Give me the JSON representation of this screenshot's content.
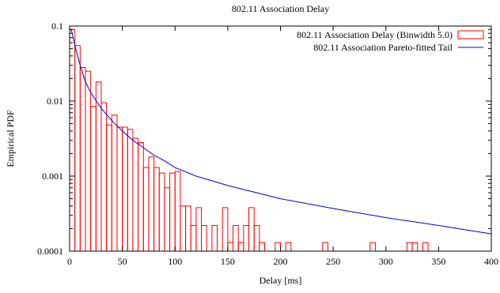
{
  "chart_data": {
    "type": "bar",
    "title": "802.11 Association Delay",
    "xlabel": "Delay [ms]",
    "ylabel": "Empirical PDF",
    "xlim": [
      0,
      400
    ],
    "ylim": [
      0.0001,
      0.1
    ],
    "yscale": "log",
    "grid": false,
    "legend_position": "top-right",
    "x_ticks": [
      0,
      50,
      100,
      150,
      200,
      250,
      300,
      350,
      400
    ],
    "x_tick_labels": [
      "0",
      "50",
      "100",
      "150",
      "200",
      "250",
      "300",
      "350",
      "400"
    ],
    "y_ticks": [
      0.0001,
      0.001,
      0.01,
      0.1
    ],
    "y_tick_labels": [
      "0.0001",
      "0.001",
      "0.01",
      "0.1"
    ],
    "series": [
      {
        "name": "802.11 Association Delay (Binwidth 5.0)",
        "kind": "histogram",
        "color": "#ff0000",
        "binwidth": 5,
        "bins": [
          [
            0,
            0.09
          ],
          [
            5,
            0.055
          ],
          [
            10,
            0.028
          ],
          [
            15,
            0.025
          ],
          [
            20,
            0.0085
          ],
          [
            25,
            0.018
          ],
          [
            30,
            0.0095
          ],
          [
            35,
            0.0048
          ],
          [
            40,
            0.0065
          ],
          [
            45,
            0.0045
          ],
          [
            50,
            0.0045
          ],
          [
            55,
            0.0042
          ],
          [
            60,
            0.0032
          ],
          [
            65,
            0.0028
          ],
          [
            70,
            0.0013
          ],
          [
            75,
            0.0018
          ],
          [
            80,
            0.0013
          ],
          [
            85,
            0.0011
          ],
          [
            90,
            0.0007
          ],
          [
            95,
            0.0011
          ],
          [
            100,
            0.00115
          ],
          [
            105,
            0.0004
          ],
          [
            110,
            0.0004
          ],
          [
            115,
            0.00022
          ],
          [
            120,
            0.00038
          ],
          [
            125,
            0.00022
          ],
          [
            130,
            0.0001
          ],
          [
            135,
            0.00022
          ],
          [
            140,
            0.0001
          ],
          [
            145,
            0.00038
          ],
          [
            150,
            0.00013
          ],
          [
            155,
            0.00022
          ],
          [
            160,
            0.00013
          ],
          [
            165,
            0.00022
          ],
          [
            170,
            0.00038
          ],
          [
            175,
            0.00022
          ],
          [
            180,
            0.00013
          ],
          [
            185,
            0.0001
          ],
          [
            190,
            0.0001
          ],
          [
            195,
            0.00013
          ],
          [
            200,
            0.0001
          ],
          [
            205,
            0.00013
          ],
          [
            210,
            0.0001
          ],
          [
            215,
            0.0001
          ],
          [
            220,
            0.0001
          ],
          [
            225,
            0.0001
          ],
          [
            230,
            0.0001
          ],
          [
            235,
            0.0001
          ],
          [
            240,
            0.00013
          ],
          [
            245,
            0.0001
          ],
          [
            250,
            0.0001
          ],
          [
            255,
            0.0001
          ],
          [
            260,
            0.0001
          ],
          [
            265,
            0.0001
          ],
          [
            270,
            0.0001
          ],
          [
            275,
            0.0001
          ],
          [
            280,
            0.0001
          ],
          [
            285,
            0.00013
          ],
          [
            290,
            0.0001
          ],
          [
            295,
            0.0001
          ],
          [
            300,
            0.0001
          ],
          [
            305,
            0.0001
          ],
          [
            310,
            0.0001
          ],
          [
            315,
            0.0001
          ],
          [
            320,
            0.00013
          ],
          [
            325,
            0.00013
          ],
          [
            330,
            0.0001
          ],
          [
            335,
            0.00013
          ],
          [
            340,
            0.0001
          ],
          [
            345,
            0.0001
          ],
          [
            350,
            0.0001
          ],
          [
            355,
            0.0001
          ],
          [
            360,
            0.0001
          ],
          [
            365,
            0.0001
          ],
          [
            370,
            0.0001
          ],
          [
            375,
            0.0001
          ],
          [
            380,
            0.0001
          ],
          [
            385,
            0.0001
          ],
          [
            390,
            0.0001
          ],
          [
            395,
            0.0001
          ]
        ]
      },
      {
        "name": "802.11 Association Pareto-fitted Tail",
        "kind": "line",
        "color": "#0000cc",
        "points": [
          [
            1,
            0.09
          ],
          [
            2,
            0.085
          ],
          [
            5,
            0.055
          ],
          [
            10,
            0.03
          ],
          [
            15,
            0.018
          ],
          [
            20,
            0.013
          ],
          [
            30,
            0.008
          ],
          [
            40,
            0.0055
          ],
          [
            50,
            0.004
          ],
          [
            60,
            0.003
          ],
          [
            70,
            0.0024
          ],
          [
            80,
            0.0019
          ],
          [
            90,
            0.0016
          ],
          [
            100,
            0.0013
          ],
          [
            120,
            0.001
          ],
          [
            150,
            0.00075
          ],
          [
            200,
            0.0005
          ],
          [
            250,
            0.00037
          ],
          [
            300,
            0.00028
          ],
          [
            350,
            0.00022
          ],
          [
            400,
            0.00017
          ]
        ]
      }
    ]
  }
}
